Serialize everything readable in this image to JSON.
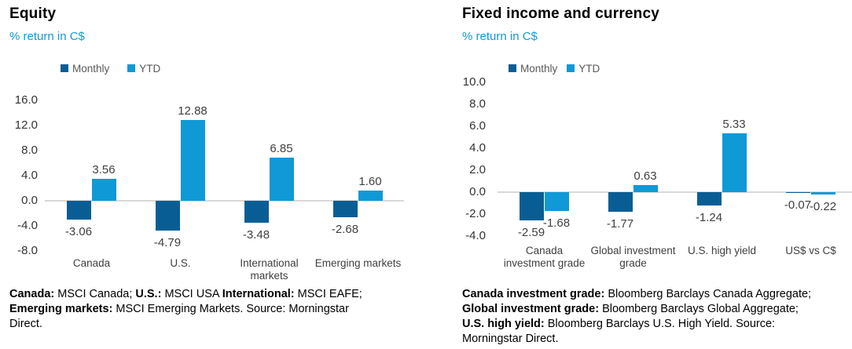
{
  "colors": {
    "monthly_series": "#085E94",
    "ytd_series": "#0F99D6",
    "subtitle_text": "#0F9AD6",
    "legend_text": "#595959",
    "axis_text": "#333333",
    "data_label_text": "#404040",
    "zero_line": "#D9D9D9"
  },
  "chart_data": [
    {
      "type": "bar",
      "title": "Equity",
      "subtitle": "% return in C$",
      "xlabel": "",
      "ylabel": "% return in C$",
      "legend_position": "top",
      "grid": false,
      "ylim": [
        -8.0,
        16.0
      ],
      "yticks": [
        16,
        12,
        8,
        4,
        0,
        -4,
        -8
      ],
      "ytick_labels": [
        "16.0",
        "12.0",
        "8.0",
        "4.0",
        "0.0",
        "-4.0",
        "-8.0"
      ],
      "categories": [
        "Canada",
        "U.S.",
        "International\nmarkets",
        "Emerging markets"
      ],
      "series": [
        {
          "name": "Monthly",
          "color": "#085E94",
          "values": [
            -3.06,
            -4.79,
            -3.48,
            -2.68
          ]
        },
        {
          "name": "YTD",
          "color": "#0F99D6",
          "values": [
            3.56,
            12.88,
            6.85,
            1.6
          ]
        }
      ],
      "data_labels": [
        "-3.06",
        "-4.79",
        "-3.48",
        "-2.68",
        "3.56",
        "12.88",
        "6.85",
        "1.60"
      ],
      "footnote_segments": [
        {
          "text": "Canada:",
          "bold": true
        },
        {
          "text": " MSCI Canada; ",
          "bold": false
        },
        {
          "text": "U.S.:",
          "bold": true
        },
        {
          "text": " MSCI USA ",
          "bold": false
        },
        {
          "text": "International:",
          "bold": true
        },
        {
          "text": " MSCI EAFE;\n",
          "bold": false
        },
        {
          "text": "Emerging markets:",
          "bold": true
        },
        {
          "text": " MSCI Emerging Markets. Source: Morningstar\nDirect.",
          "bold": false
        }
      ]
    },
    {
      "type": "bar",
      "title": "Fixed income and currency",
      "subtitle": "% return in C$",
      "xlabel": "",
      "ylabel": "% return in C$",
      "legend_position": "top",
      "grid": false,
      "ylim": [
        -4.0,
        10.0
      ],
      "yticks": [
        10,
        8,
        6,
        4,
        2,
        0,
        -2,
        -4
      ],
      "ytick_labels": [
        "10.0",
        "8.0",
        "6.0",
        "4.0",
        "2.0",
        "0.0",
        "-2.0",
        "-4.0"
      ],
      "categories": [
        "Canada\ninvestment grade",
        "Global investment\ngrade",
        "U.S. high yield",
        "US$ vs C$"
      ],
      "series": [
        {
          "name": "Monthly",
          "color": "#085E94",
          "values": [
            -2.59,
            -1.77,
            -1.24,
            -0.07
          ]
        },
        {
          "name": "YTD",
          "color": "#0F99D6",
          "values": [
            -1.68,
            0.63,
            5.33,
            -0.22
          ]
        }
      ],
      "data_labels": [
        "-2.59",
        "-1.77",
        "-1.24",
        "-0.07",
        "-1.68",
        "0.63",
        "5.33",
        "-0.22"
      ],
      "footnote_segments": [
        {
          "text": "Canada investment grade:",
          "bold": true
        },
        {
          "text": " Bloomberg Barclays Canada Aggregate;\n",
          "bold": false
        },
        {
          "text": "Global investment grade:",
          "bold": true
        },
        {
          "text": " Bloomberg Barclays Global Aggregate;\n",
          "bold": false
        },
        {
          "text": "U.S. high yield:",
          "bold": true
        },
        {
          "text": " Bloomberg Barclays U.S. High Yield. Source:\nMorningstar Direct.",
          "bold": false
        }
      ]
    }
  ]
}
